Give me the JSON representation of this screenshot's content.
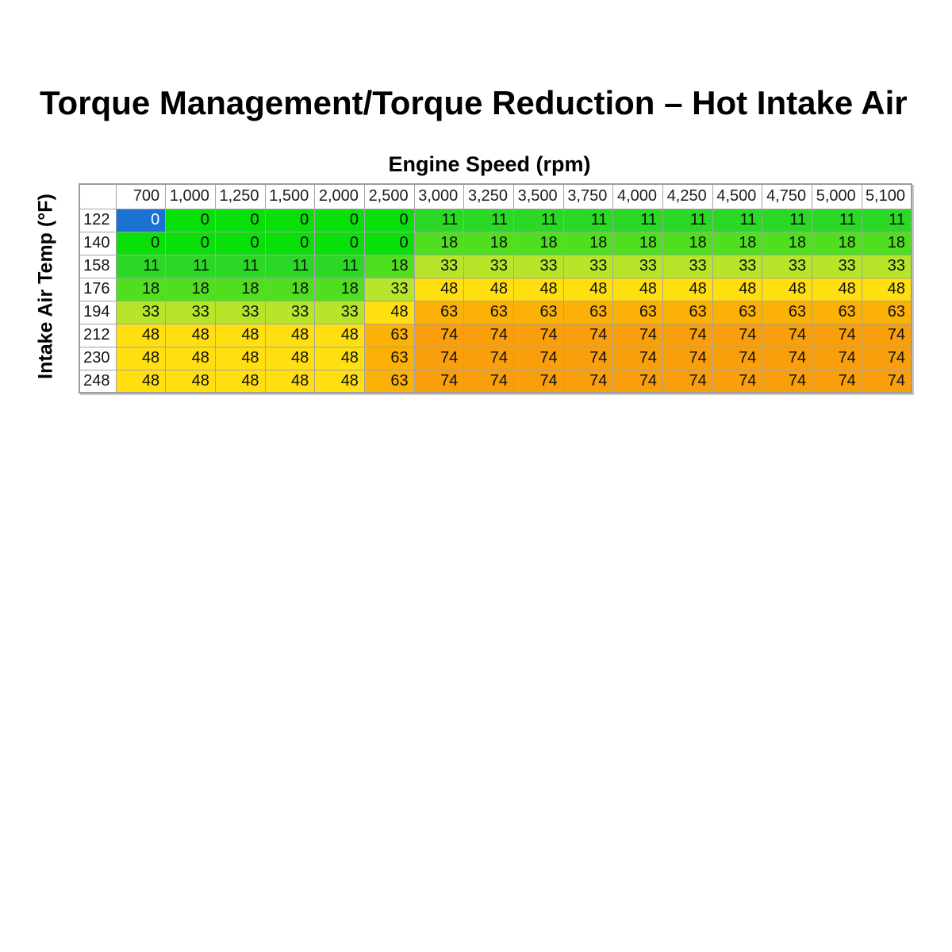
{
  "title": "Torque Management/Torque Reduction – Hot Intake Air",
  "chart_data": {
    "type": "heatmap",
    "x_label": "Engine Speed (rpm)",
    "y_label": "Intake Air Temp (°F)",
    "columns": [
      "700",
      "1,000",
      "1,250",
      "1,500",
      "2,000",
      "2,500",
      "3,000",
      "3,250",
      "3,500",
      "3,750",
      "4,000",
      "4,250",
      "4,500",
      "4,750",
      "5,000",
      "5,100"
    ],
    "rows": [
      "122",
      "140",
      "158",
      "176",
      "194",
      "212",
      "230",
      "248"
    ],
    "values": [
      [
        0,
        0,
        0,
        0,
        0,
        0,
        11,
        11,
        11,
        11,
        11,
        11,
        11,
        11,
        11,
        11
      ],
      [
        0,
        0,
        0,
        0,
        0,
        0,
        18,
        18,
        18,
        18,
        18,
        18,
        18,
        18,
        18,
        18
      ],
      [
        11,
        11,
        11,
        11,
        11,
        18,
        33,
        33,
        33,
        33,
        33,
        33,
        33,
        33,
        33,
        33
      ],
      [
        18,
        18,
        18,
        18,
        18,
        33,
        48,
        48,
        48,
        48,
        48,
        48,
        48,
        48,
        48,
        48
      ],
      [
        33,
        33,
        33,
        33,
        33,
        48,
        63,
        63,
        63,
        63,
        63,
        63,
        63,
        63,
        63,
        63
      ],
      [
        48,
        48,
        48,
        48,
        48,
        63,
        74,
        74,
        74,
        74,
        74,
        74,
        74,
        74,
        74,
        74
      ],
      [
        48,
        48,
        48,
        48,
        48,
        63,
        74,
        74,
        74,
        74,
        74,
        74,
        74,
        74,
        74,
        74
      ],
      [
        48,
        48,
        48,
        48,
        48,
        63,
        74,
        74,
        74,
        74,
        74,
        74,
        74,
        74,
        74,
        74
      ]
    ],
    "value_colors": {
      "0": "#09df09",
      "11": "#2bd826",
      "18": "#4fdf1e",
      "33": "#b6e52a",
      "48": "#ffdf10",
      "63": "#fcb106",
      "74": "#f99f0b"
    },
    "selected_cell": {
      "row": "122",
      "column": "700",
      "value": 0,
      "background": "#1c72d2",
      "text_color": "#ffffff"
    }
  }
}
